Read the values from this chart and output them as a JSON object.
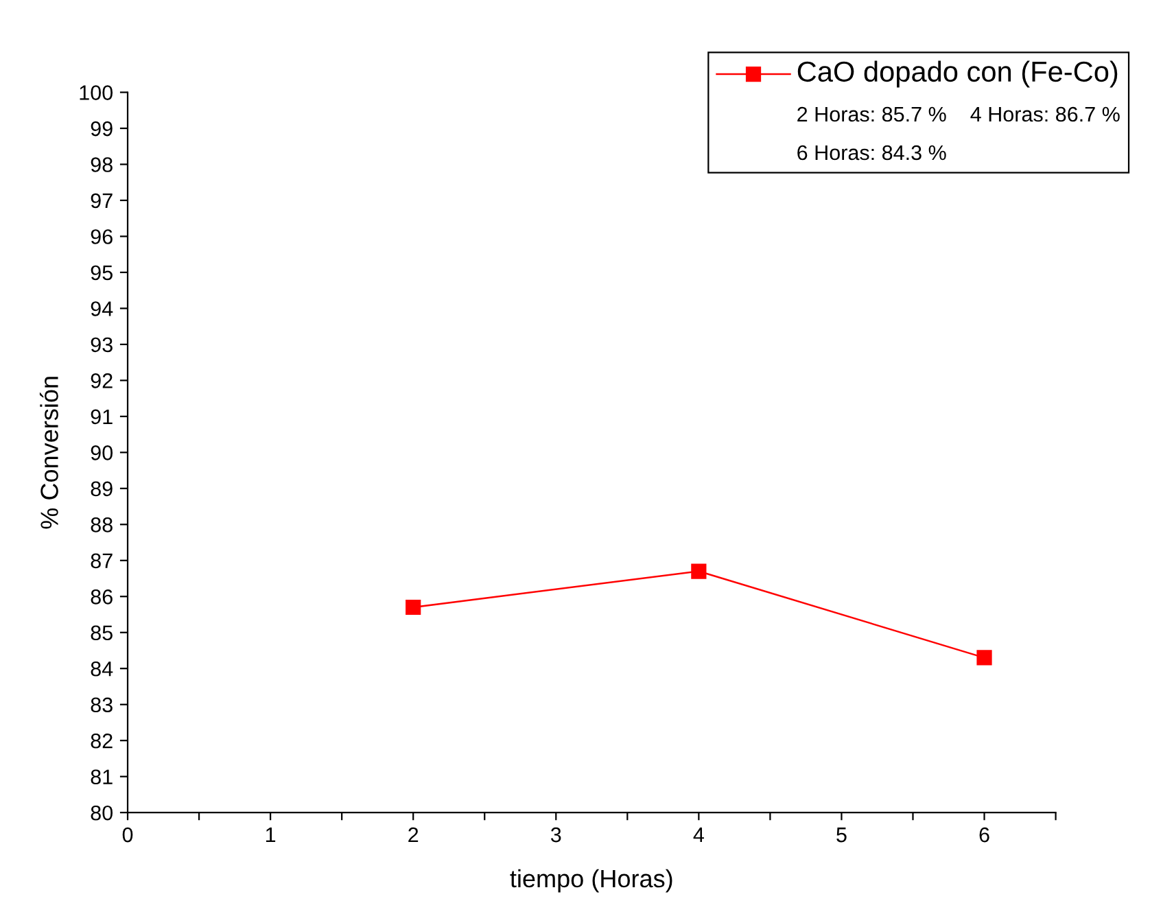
{
  "chart_data": {
    "type": "line",
    "xlabel": "tiempo (Horas)",
    "ylabel": "% Conversión",
    "x": [
      2,
      4,
      6
    ],
    "series": [
      {
        "name": "CaO dopado con (Fe-Co)",
        "color": "#ff0000",
        "values": [
          85.7,
          86.7,
          84.3
        ]
      }
    ],
    "xlim": [
      0,
      6.5
    ],
    "xticks": [
      0,
      {
        "value": 0.5,
        "label": null
      },
      1,
      {
        "value": 1.5,
        "label": null
      },
      2,
      {
        "value": 2.5,
        "label": null
      },
      3,
      {
        "value": 3.5,
        "label": null
      },
      4,
      {
        "value": 4.5,
        "label": null
      },
      5,
      {
        "value": 5.5,
        "label": null
      },
      6,
      {
        "value": 6.5,
        "label": null
      }
    ],
    "ylim": [
      80,
      100
    ],
    "yticks": [
      80,
      81,
      82,
      83,
      84,
      85,
      86,
      87,
      88,
      89,
      90,
      91,
      92,
      93,
      94,
      95,
      96,
      97,
      98,
      99,
      100
    ],
    "annotations": [
      "2 Horas: 85.7 %    4 Horas: 86.7 %",
      "6 Horas: 84.3 %"
    ],
    "legend": "top right",
    "marker": "square",
    "line_style": "solid",
    "grid": false
  }
}
